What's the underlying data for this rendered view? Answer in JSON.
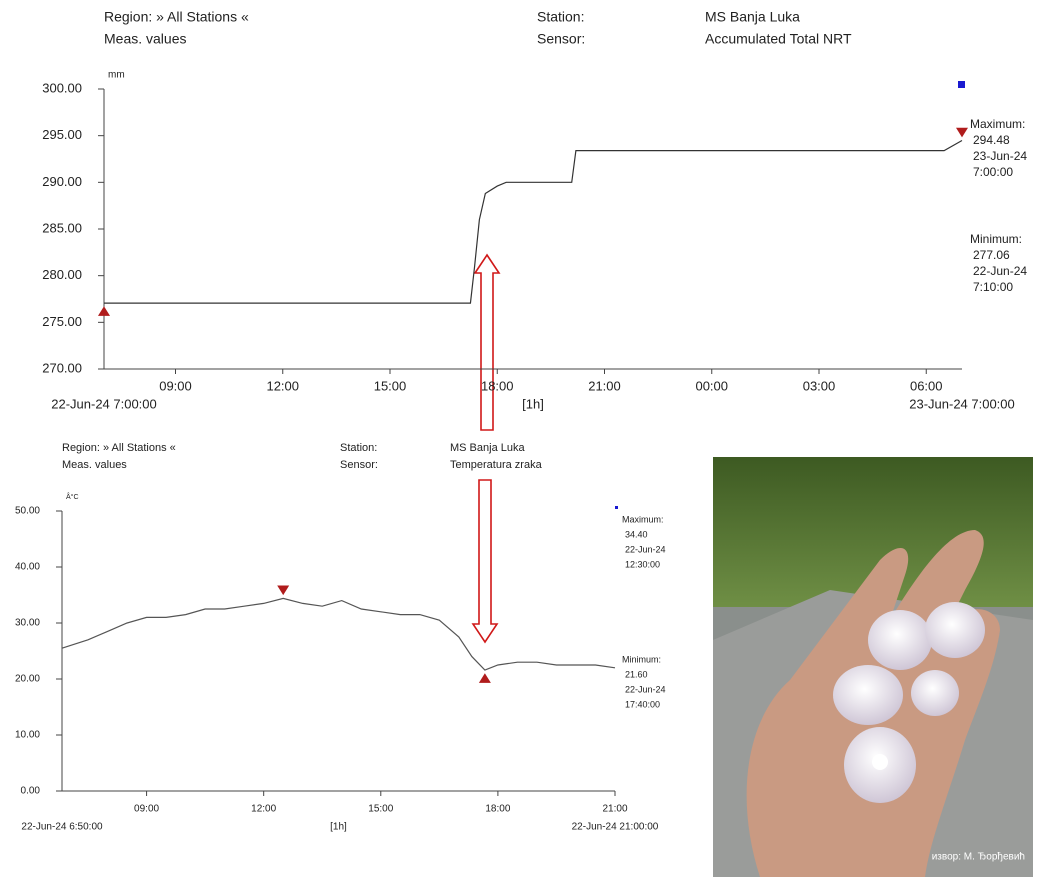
{
  "chart_data": [
    {
      "type": "line",
      "header": {
        "region": "Region: » All Stations «",
        "meas": "Meas. values",
        "station_label": "Station:",
        "station": "MS Banja Luka",
        "sensor_label": "Sensor:",
        "sensor": "Accumulated Total NRT"
      },
      "y_unit": "mm",
      "x": [
        "2024-06-22 07:00",
        "2024-06-22 17:15",
        "2024-06-22 17:22",
        "2024-06-22 17:30",
        "2024-06-22 17:40",
        "2024-06-22 18:00",
        "2024-06-22 18:15",
        "2024-06-22 20:05",
        "2024-06-22 20:12",
        "2024-06-23 06:30",
        "2024-06-23 07:00"
      ],
      "values": [
        277.06,
        277.06,
        281,
        286,
        288.8,
        289.6,
        290,
        290,
        293.4,
        293.4,
        294.48
      ],
      "color": "#333333",
      "xlim": [
        "2024-06-22 07:00",
        "2024-06-23 07:00"
      ],
      "x_start_label": "22-Jun-24 7:00:00",
      "x_end_label": "23-Jun-24 7:00:00",
      "xlabel": "[1h]",
      "xticks": [
        {
          "value": "2024-06-22 09:00",
          "label": "09:00"
        },
        {
          "value": "2024-06-22 12:00",
          "label": "12:00"
        },
        {
          "value": "2024-06-22 15:00",
          "label": "15:00"
        },
        {
          "value": "2024-06-22 18:00",
          "label": "18:00"
        },
        {
          "value": "2024-06-22 21:00",
          "label": "21:00"
        },
        {
          "value": "2024-06-23 00:00",
          "label": "00:00"
        },
        {
          "value": "2024-06-23 03:00",
          "label": "03:00"
        },
        {
          "value": "2024-06-23 06:00",
          "label": "06:00"
        }
      ],
      "ylim": [
        270,
        300
      ],
      "yticks": [
        {
          "value": 270,
          "label": "270.00"
        },
        {
          "value": 275,
          "label": "275.00"
        },
        {
          "value": 280,
          "label": "280.00"
        },
        {
          "value": 285,
          "label": "285.00"
        },
        {
          "value": 290,
          "label": "290.00"
        },
        {
          "value": 295,
          "label": "295.00"
        },
        {
          "value": 300,
          "label": "300.00"
        }
      ],
      "annotations": {
        "max": {
          "label": "Maximum:",
          "value": 294.48,
          "date": "23-Jun-24",
          "time": "7:00:00"
        },
        "min": {
          "label": "Minimum:",
          "value": 277.06,
          "date": "22-Jun-24",
          "time": "7:10:00"
        }
      }
    },
    {
      "type": "line",
      "header": {
        "region": "Region: » All Stations «",
        "meas": "Meas. values",
        "station_label": "Station:",
        "station": "MS Banja Luka",
        "sensor_label": "Sensor:",
        "sensor": "Temperatura zraka"
      },
      "y_unit": "Â°C",
      "x": [
        "2024-06-22 06:50",
        "2024-06-22 07:30",
        "2024-06-22 08:00",
        "2024-06-22 08:30",
        "2024-06-22 09:00",
        "2024-06-22 09:30",
        "2024-06-22 10:00",
        "2024-06-22 10:30",
        "2024-06-22 11:00",
        "2024-06-22 11:30",
        "2024-06-22 12:00",
        "2024-06-22 12:30",
        "2024-06-22 13:00",
        "2024-06-22 13:30",
        "2024-06-22 14:00",
        "2024-06-22 14:30",
        "2024-06-22 15:00",
        "2024-06-22 15:30",
        "2024-06-22 16:00",
        "2024-06-22 16:30",
        "2024-06-22 17:00",
        "2024-06-22 17:20",
        "2024-06-22 17:40",
        "2024-06-22 18:00",
        "2024-06-22 18:30",
        "2024-06-22 19:00",
        "2024-06-22 19:30",
        "2024-06-22 20:00",
        "2024-06-22 20:30",
        "2024-06-22 21:00"
      ],
      "values": [
        25.5,
        27,
        28.5,
        30,
        31,
        31,
        31.5,
        32.5,
        32.5,
        33,
        33.5,
        34.4,
        33.5,
        33,
        34,
        32.5,
        32,
        31.5,
        31.5,
        30.5,
        27.5,
        24,
        21.6,
        22.5,
        23,
        23,
        22.5,
        22.5,
        22.5,
        22
      ],
      "color": "#555555",
      "xlim": [
        "2024-06-22 06:50",
        "2024-06-22 21:00"
      ],
      "x_start_label": "22-Jun-24 6:50:00",
      "x_end_label": "22-Jun-24 21:00:00",
      "xlabel": "[1h]",
      "xticks": [
        {
          "value": "2024-06-22 09:00",
          "label": "09:00"
        },
        {
          "value": "2024-06-22 12:00",
          "label": "12:00"
        },
        {
          "value": "2024-06-22 15:00",
          "label": "15:00"
        },
        {
          "value": "2024-06-22 18:00",
          "label": "18:00"
        },
        {
          "value": "2024-06-22 21:00",
          "label": "21:00"
        }
      ],
      "ylim": [
        0,
        50
      ],
      "yticks": [
        {
          "value": 0,
          "label": "0.00"
        },
        {
          "value": 10,
          "label": "10.00"
        },
        {
          "value": 20,
          "label": "20.00"
        },
        {
          "value": 30,
          "label": "30.00"
        },
        {
          "value": 40,
          "label": "40.00"
        },
        {
          "value": 50,
          "label": "50.00"
        }
      ],
      "annotations": {
        "max": {
          "label": "Maximum:",
          "value": 34.4,
          "value_label": "34.40",
          "date": "22-Jun-24",
          "time": "12:30:00"
        },
        "min": {
          "label": "Minimum:",
          "value": 21.6,
          "value_label": "21.60",
          "date": "22-Jun-24",
          "time": "17:40:00"
        }
      }
    }
  ],
  "photo": {
    "credit": "извор: М. Ђорђевић"
  }
}
